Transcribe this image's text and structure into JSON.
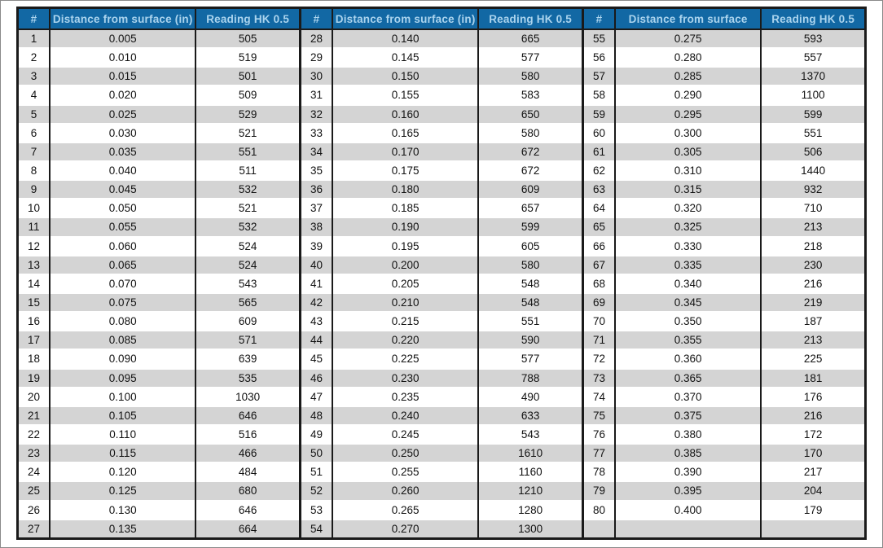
{
  "colors": {
    "header_bg": "#1268a4",
    "header_text": "#abd4ee",
    "row_alt": "#d4d4d4",
    "row_bg": "#ffffff",
    "grid": "#1a1a1a",
    "page_border": "#8a8a8a"
  },
  "table": {
    "visual_row_count": 27,
    "groups": [
      {
        "headers": {
          "num": "#",
          "distance": "Distance from surface (in)",
          "reading": "Reading HK 0.5"
        },
        "rows": [
          {
            "n": "1",
            "d": "0.005",
            "r": "505"
          },
          {
            "n": "2",
            "d": "0.010",
            "r": "519"
          },
          {
            "n": "3",
            "d": "0.015",
            "r": "501"
          },
          {
            "n": "4",
            "d": "0.020",
            "r": "509"
          },
          {
            "n": "5",
            "d": "0.025",
            "r": "529"
          },
          {
            "n": "6",
            "d": "0.030",
            "r": "521"
          },
          {
            "n": "7",
            "d": "0.035",
            "r": "551"
          },
          {
            "n": "8",
            "d": "0.040",
            "r": "511"
          },
          {
            "n": "9",
            "d": "0.045",
            "r": "532"
          },
          {
            "n": "10",
            "d": "0.050",
            "r": "521"
          },
          {
            "n": "11",
            "d": "0.055",
            "r": "532"
          },
          {
            "n": "12",
            "d": "0.060",
            "r": "524"
          },
          {
            "n": "13",
            "d": "0.065",
            "r": "524"
          },
          {
            "n": "14",
            "d": "0.070",
            "r": "543"
          },
          {
            "n": "15",
            "d": "0.075",
            "r": "565"
          },
          {
            "n": "16",
            "d": "0.080",
            "r": "609"
          },
          {
            "n": "17",
            "d": "0.085",
            "r": "571"
          },
          {
            "n": "18",
            "d": "0.090",
            "r": "639"
          },
          {
            "n": "19",
            "d": "0.095",
            "r": "535"
          },
          {
            "n": "20",
            "d": "0.100",
            "r": "1030"
          },
          {
            "n": "21",
            "d": "0.105",
            "r": "646"
          },
          {
            "n": "22",
            "d": "0.110",
            "r": "516"
          },
          {
            "n": "23",
            "d": "0.115",
            "r": "466"
          },
          {
            "n": "24",
            "d": "0.120",
            "r": "484"
          },
          {
            "n": "25",
            "d": "0.125",
            "r": "680"
          },
          {
            "n": "26",
            "d": "0.130",
            "r": "646"
          },
          {
            "n": "27",
            "d": "0.135",
            "r": "664"
          }
        ]
      },
      {
        "headers": {
          "num": "#",
          "distance": "Distance from surface (in)",
          "reading": "Reading HK 0.5"
        },
        "rows": [
          {
            "n": "28",
            "d": "0.140",
            "r": "665"
          },
          {
            "n": "29",
            "d": "0.145",
            "r": "577"
          },
          {
            "n": "30",
            "d": "0.150",
            "r": "580"
          },
          {
            "n": "31",
            "d": "0.155",
            "r": "583"
          },
          {
            "n": "32",
            "d": "0.160",
            "r": "650"
          },
          {
            "n": "33",
            "d": "0.165",
            "r": "580"
          },
          {
            "n": "34",
            "d": "0.170",
            "r": "672"
          },
          {
            "n": "35",
            "d": "0.175",
            "r": "672"
          },
          {
            "n": "36",
            "d": "0.180",
            "r": "609"
          },
          {
            "n": "37",
            "d": "0.185",
            "r": "657"
          },
          {
            "n": "38",
            "d": "0.190",
            "r": "599"
          },
          {
            "n": "39",
            "d": "0.195",
            "r": "605"
          },
          {
            "n": "40",
            "d": "0.200",
            "r": "580"
          },
          {
            "n": "41",
            "d": "0.205",
            "r": "548"
          },
          {
            "n": "42",
            "d": "0.210",
            "r": "548"
          },
          {
            "n": "43",
            "d": "0.215",
            "r": "551"
          },
          {
            "n": "44",
            "d": "0.220",
            "r": "590"
          },
          {
            "n": "45",
            "d": "0.225",
            "r": "577"
          },
          {
            "n": "46",
            "d": "0.230",
            "r": "788"
          },
          {
            "n": "47",
            "d": "0.235",
            "r": "490"
          },
          {
            "n": "48",
            "d": "0.240",
            "r": "633"
          },
          {
            "n": "49",
            "d": "0.245",
            "r": "543"
          },
          {
            "n": "50",
            "d": "0.250",
            "r": "1610"
          },
          {
            "n": "51",
            "d": "0.255",
            "r": "1160"
          },
          {
            "n": "52",
            "d": "0.260",
            "r": "1210"
          },
          {
            "n": "53",
            "d": "0.265",
            "r": "1280"
          },
          {
            "n": "54",
            "d": "0.270",
            "r": "1300"
          }
        ]
      },
      {
        "headers": {
          "num": "#",
          "distance": "Distance from surface",
          "reading": "Reading HK 0.5"
        },
        "rows": [
          {
            "n": "55",
            "d": "0.275",
            "r": "593"
          },
          {
            "n": "56",
            "d": "0.280",
            "r": "557"
          },
          {
            "n": "57",
            "d": "0.285",
            "r": "1370"
          },
          {
            "n": "58",
            "d": "0.290",
            "r": "1100"
          },
          {
            "n": "59",
            "d": "0.295",
            "r": "599"
          },
          {
            "n": "60",
            "d": "0.300",
            "r": "551"
          },
          {
            "n": "61",
            "d": "0.305",
            "r": "506"
          },
          {
            "n": "62",
            "d": "0.310",
            "r": "1440"
          },
          {
            "n": "63",
            "d": "0.315",
            "r": "932"
          },
          {
            "n": "64",
            "d": "0.320",
            "r": "710"
          },
          {
            "n": "65",
            "d": "0.325",
            "r": "213"
          },
          {
            "n": "66",
            "d": "0.330",
            "r": "218"
          },
          {
            "n": "67",
            "d": "0.335",
            "r": "230"
          },
          {
            "n": "68",
            "d": "0.340",
            "r": "216"
          },
          {
            "n": "69",
            "d": "0.345",
            "r": "219"
          },
          {
            "n": "70",
            "d": "0.350",
            "r": "187"
          },
          {
            "n": "71",
            "d": "0.355",
            "r": "213"
          },
          {
            "n": "72",
            "d": "0.360",
            "r": "225"
          },
          {
            "n": "73",
            "d": "0.365",
            "r": "181"
          },
          {
            "n": "74",
            "d": "0.370",
            "r": "176"
          },
          {
            "n": "75",
            "d": "0.375",
            "r": "216"
          },
          {
            "n": "76",
            "d": "0.380",
            "r": "172"
          },
          {
            "n": "77",
            "d": "0.385",
            "r": "170"
          },
          {
            "n": "78",
            "d": "0.390",
            "r": "217"
          },
          {
            "n": "79",
            "d": "0.395",
            "r": "204"
          },
          {
            "n": "80",
            "d": "0.400",
            "r": "179"
          }
        ]
      }
    ]
  }
}
